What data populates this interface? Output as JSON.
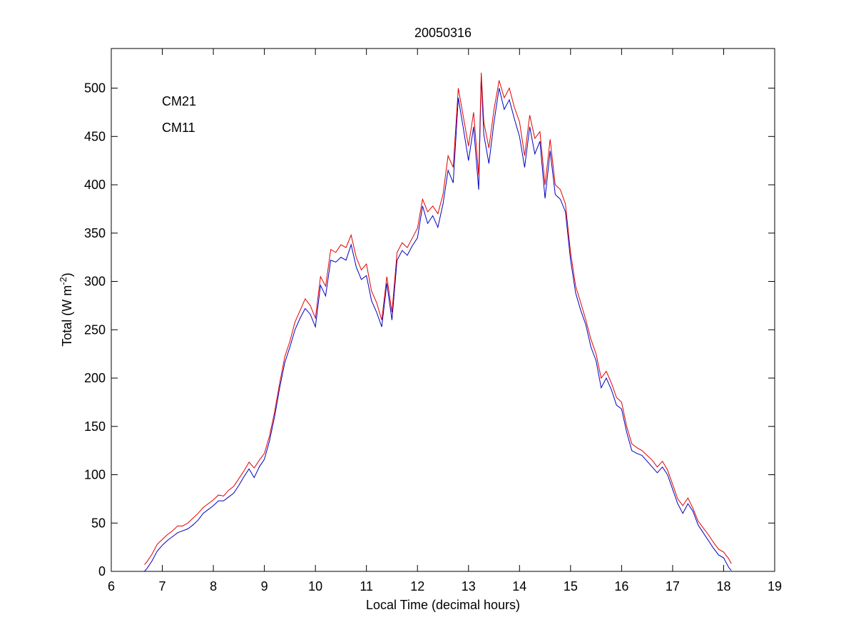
{
  "chart_data": {
    "type": "line",
    "title": "20050316",
    "xlabel": "Local Time (decimal hours)",
    "ylabel": {
      "text": "Total (W m",
      "superscript": "-2",
      "suffix": ")"
    },
    "x": [
      6.65,
      6.7,
      6.8,
      6.9,
      7.0,
      7.1,
      7.2,
      7.3,
      7.4,
      7.5,
      7.6,
      7.7,
      7.8,
      7.9,
      8.0,
      8.1,
      8.2,
      8.3,
      8.4,
      8.5,
      8.6,
      8.7,
      8.8,
      8.9,
      9.0,
      9.1,
      9.2,
      9.3,
      9.4,
      9.5,
      9.6,
      9.7,
      9.8,
      9.9,
      10.0,
      10.1,
      10.2,
      10.3,
      10.4,
      10.5,
      10.6,
      10.7,
      10.8,
      10.9,
      11.0,
      11.1,
      11.2,
      11.3,
      11.4,
      11.5,
      11.6,
      11.7,
      11.8,
      11.9,
      12.0,
      12.1,
      12.2,
      12.3,
      12.4,
      12.5,
      12.6,
      12.7,
      12.8,
      12.9,
      13.0,
      13.1,
      13.2,
      13.25,
      13.3,
      13.4,
      13.5,
      13.6,
      13.7,
      13.8,
      13.9,
      14.0,
      14.1,
      14.2,
      14.3,
      14.4,
      14.5,
      14.6,
      14.7,
      14.8,
      14.9,
      15.0,
      15.1,
      15.2,
      15.3,
      15.4,
      15.5,
      15.6,
      15.7,
      15.8,
      15.9,
      16.0,
      16.1,
      16.2,
      16.3,
      16.4,
      16.5,
      16.6,
      16.7,
      16.8,
      16.9,
      17.0,
      17.1,
      17.2,
      17.3,
      17.4,
      17.5,
      17.6,
      17.7,
      17.8,
      17.9,
      18.0,
      18.1,
      18.15
    ],
    "series": [
      {
        "name": "CM21",
        "color": "#0000c0",
        "values": [
          0,
          3,
          11,
          21,
          27,
          32,
          36,
          40,
          42,
          44,
          48,
          53,
          60,
          64,
          68,
          73,
          73,
          77,
          81,
          89,
          98,
          106,
          97,
          108,
          116,
          135,
          160,
          190,
          216,
          232,
          250,
          262,
          272,
          266,
          253,
          296,
          285,
          322,
          320,
          325,
          322,
          338,
          315,
          302,
          306,
          280,
          268,
          253,
          298,
          260,
          322,
          332,
          327,
          337,
          345,
          378,
          360,
          368,
          356,
          380,
          415,
          402,
          490,
          458,
          425,
          460,
          395,
          512,
          452,
          422,
          465,
          500,
          478,
          488,
          468,
          450,
          418,
          460,
          432,
          445,
          386,
          435,
          390,
          385,
          372,
          322,
          288,
          270,
          255,
          232,
          218,
          190,
          200,
          188,
          172,
          168,
          144,
          125,
          122,
          120,
          114,
          108,
          102,
          108,
          100,
          85,
          70,
          60,
          70,
          62,
          48,
          40,
          32,
          24,
          17,
          14,
          4,
          1
        ]
      },
      {
        "name": "CM11",
        "color": "#e00000",
        "values": [
          7,
          10,
          18,
          28,
          33,
          38,
          42,
          47,
          47,
          50,
          55,
          60,
          66,
          70,
          74,
          79,
          78,
          84,
          88,
          96,
          104,
          113,
          107,
          115,
          122,
          140,
          165,
          195,
          222,
          238,
          258,
          270,
          282,
          275,
          262,
          305,
          295,
          333,
          330,
          338,
          335,
          348,
          325,
          312,
          318,
          290,
          278,
          260,
          305,
          268,
          330,
          340,
          335,
          345,
          355,
          385,
          372,
          378,
          370,
          390,
          430,
          418,
          500,
          470,
          440,
          475,
          410,
          516,
          465,
          438,
          478,
          508,
          490,
          500,
          480,
          465,
          430,
          472,
          448,
          455,
          400,
          447,
          400,
          395,
          380,
          330,
          295,
          278,
          260,
          240,
          225,
          200,
          207,
          195,
          180,
          175,
          150,
          132,
          128,
          125,
          120,
          115,
          108,
          114,
          105,
          90,
          75,
          68,
          76,
          65,
          52,
          45,
          38,
          30,
          23,
          20,
          13,
          8
        ]
      }
    ],
    "xlim": [
      6,
      19
    ],
    "ylim": [
      0,
      541
    ],
    "xticks": [
      6,
      7,
      8,
      9,
      10,
      11,
      12,
      13,
      14,
      15,
      16,
      17,
      18,
      19
    ],
    "yticks": [
      0,
      50,
      100,
      150,
      200,
      250,
      300,
      350,
      400,
      450,
      500
    ],
    "grid": false,
    "legend": "upper left"
  }
}
